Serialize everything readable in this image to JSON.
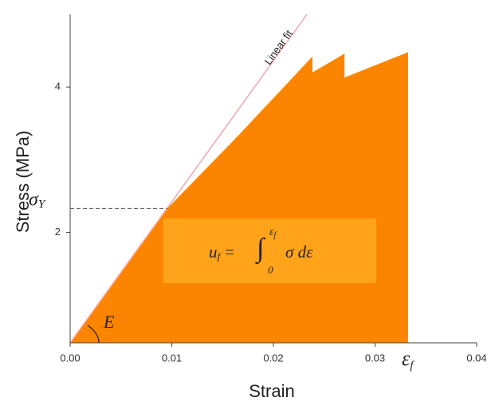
{
  "chart_data": {
    "type": "area",
    "x_label": "Strain",
    "y_label": "Stress (MPa)",
    "color": "#fb8500",
    "x": [
      0,
      0.00957,
      0.0166,
      0.02384,
      0.02384,
      0.027,
      0.027,
      0.03325,
      0.03325
    ],
    "values": [
      0.48,
      2.33,
      3.34,
      4.42,
      4.2,
      4.46,
      4.13,
      4.48,
      0.48
    ],
    "xlim": [
      0,
      0.04
    ],
    "ylim": [
      0.48,
      5.0
    ],
    "xticks": [
      {
        "value": 0,
        "label": "0.00"
      },
      {
        "value": 0.01,
        "label": "0.01"
      },
      {
        "value": 0.02,
        "label": "0.02"
      },
      {
        "value": 0.03,
        "label": "0.03"
      },
      {
        "value": 0.04,
        "label": "0.04"
      }
    ],
    "yticks": [
      2,
      4
    ],
    "fit": {
      "name": "Linear fit",
      "color": "#f4a6b0",
      "x": [
        0,
        0.0233
      ],
      "values": [
        0.48,
        5.0
      ]
    },
    "yield": {
      "symbol": "σ",
      "sub": "Y",
      "x": 0.00957,
      "y": 2.33
    },
    "modulus_label": "E",
    "failure": {
      "symbol": "ε",
      "sub": "f",
      "x": 0.03325
    },
    "formula": {
      "lhs": "u",
      "lhs_sub": "f",
      "eq": "=",
      "integral": "∫",
      "lower": "0",
      "upper": "ε",
      "upper_sub": "f",
      "body": "σ dε",
      "color": "#ffa31a"
    }
  }
}
